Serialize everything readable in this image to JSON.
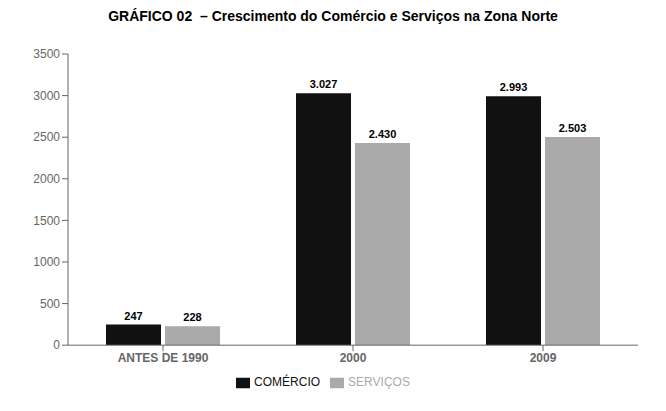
{
  "chart_data": {
    "type": "bar",
    "title": "GRÁFICO 02  – Crescimento do Comércio e Serviços na Zona Norte",
    "categories": [
      "ANTES DE 1990",
      "2000",
      "2009"
    ],
    "series": [
      {
        "name": "COMÉRCIO",
        "color": "#111111",
        "values": [
          247,
          3027,
          2993
        ],
        "value_labels": [
          "247",
          "3.027",
          "2.993"
        ]
      },
      {
        "name": "SERVIÇOS",
        "color": "#aaaaaa",
        "values": [
          228,
          2430,
          2503
        ],
        "value_labels": [
          "228",
          "2.430",
          "2.503"
        ]
      }
    ],
    "ylim": [
      0,
      3500
    ],
    "yticks": [
      0,
      500,
      1000,
      1500,
      2000,
      2500,
      3000,
      3500
    ],
    "data_labels": true,
    "legend": "bottom",
    "grid": false
  }
}
